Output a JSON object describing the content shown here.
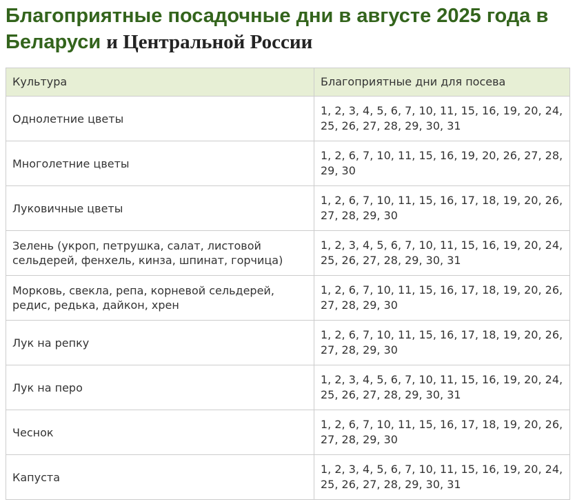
{
  "title": {
    "part1": "Благоприятные посадочные дни в августе 2025 года в Беларуси ",
    "part2": "и Центральной России"
  },
  "table": {
    "headers": [
      "Культура",
      "Благоприятные дни для посева"
    ],
    "rows": [
      {
        "culture": "Однолетние цветы",
        "days": "1, 2, 3, 4, 5, 6, 7, 10, 11, 15, 16, 19, 20, 24, 25, 26, 27, 28, 29, 30, 31"
      },
      {
        "culture": "Многолетние цветы",
        "days": "1, 2, 6, 7, 10, 11, 15, 16, 19, 20, 26, 27, 28, 29, 30"
      },
      {
        "culture": "Луковичные цветы",
        "days": "1, 2, 6, 7, 10, 11, 15, 16, 17, 18, 19, 20, 26, 27, 28, 29, 30"
      },
      {
        "culture": "Зелень (укроп, петрушка, салат, листовой сельдерей, фенхель, кинза, шпинат, горчица)",
        "days": "1, 2, 3, 4, 5, 6, 7, 10, 11, 15, 16, 19, 20, 24, 25, 26, 27, 28, 29, 30, 31"
      },
      {
        "culture": "Морковь, свекла, репа, корневой сельдерей, редис, редька, дайкон, хрен",
        "days": "1, 2, 6, 7, 10, 11, 15, 16, 17, 18, 19, 20, 26, 27, 28, 29, 30"
      },
      {
        "culture": "Лук на репку",
        "days": "1, 2, 6, 7, 10, 11, 15, 16, 17, 18, 19, 20, 26, 27, 28, 29, 30"
      },
      {
        "culture": "Лук на перо",
        "days": "1, 2, 3, 4, 5, 6, 7, 10, 11, 15, 16, 19, 20, 24, 25, 26, 27, 28, 29, 30, 31"
      },
      {
        "culture": "Чеснок",
        "days": "1, 2, 6, 7, 10, 11, 15, 16, 17, 18, 19, 20, 26, 27, 28, 29, 30"
      },
      {
        "culture": "Капуста",
        "days": "1, 2, 3, 4, 5, 6, 7, 10, 11, 15, 16, 19, 20, 24, 25, 26, 27, 28, 29, 30, 31"
      }
    ]
  },
  "colors": {
    "title_green": "#33641c",
    "title_serif": "#232323",
    "header_bg": "#e7efd5",
    "table_border": "#cccccc",
    "body_text": "#333333"
  }
}
